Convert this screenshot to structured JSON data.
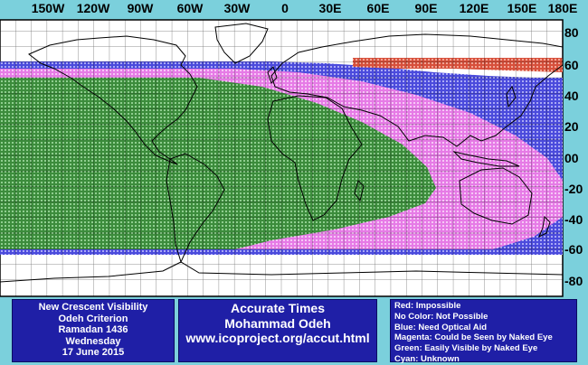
{
  "map": {
    "longitude_labels": [
      "150W",
      "120W",
      "90W",
      "60W",
      "30W",
      "0",
      "30E",
      "60E",
      "90E",
      "120E",
      "150E",
      "180E"
    ],
    "latitude_labels": [
      "80",
      "60",
      "40",
      "20",
      "00",
      "-20",
      "-40",
      "-60",
      "-80"
    ],
    "colors": {
      "background": "#7bd0dc",
      "green": "#3c8c3c",
      "magenta": "#e67be6",
      "blue": "#4b4bdc",
      "red": "#d7503c",
      "coast": "#000000",
      "grid": "#000000"
    },
    "zones": [
      {
        "color": "red",
        "meaning": "Impossible"
      },
      {
        "color": "blue",
        "meaning": "Need Optical Aid"
      },
      {
        "color": "magenta",
        "meaning": "Could be Seen by Naked Eye"
      },
      {
        "color": "green",
        "meaning": "Easily Visible by Naked Eye"
      }
    ]
  },
  "info_left": {
    "line1": "New Crescent Visibility",
    "line2": "Odeh Criterion",
    "line3": "Ramadan 1436",
    "line4": "Wednesday",
    "line5": "17 June 2015"
  },
  "info_middle": {
    "line1": "Accurate Times",
    "line2": "Mohammad Odeh",
    "line3": "www.icoproject.org/accut.html"
  },
  "legend": {
    "red": "Red: Impossible",
    "no_color": "No Color: Not Possible",
    "blue": "Blue: Need Optical Aid",
    "magenta": "Magenta: Could be Seen by Naked Eye",
    "green": "Green: Easily Visible by Naked Eye",
    "cyan": "Cyan: Unknown"
  }
}
